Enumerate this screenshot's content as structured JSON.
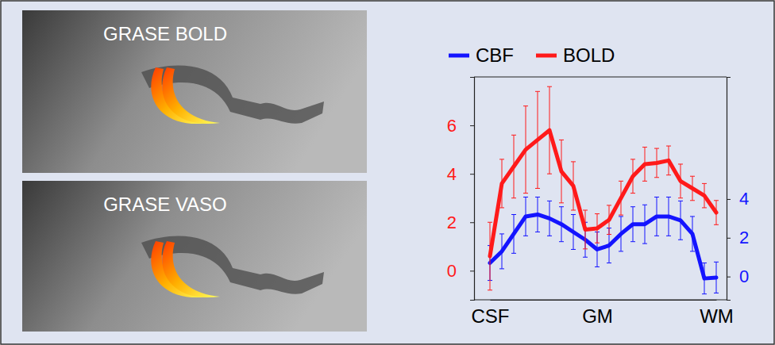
{
  "chart_data": {
    "type": "line",
    "categories": [
      "CSF",
      null,
      null,
      null,
      null,
      null,
      null,
      null,
      null,
      "GM",
      null,
      null,
      null,
      null,
      null,
      null,
      null,
      null,
      null,
      "WM"
    ],
    "series": [
      {
        "name": "CBF",
        "color": "#1414ff",
        "axis": "y2",
        "values": [
          0.7,
          1.3,
          2.2,
          3.1,
          3.2,
          3.0,
          2.7,
          2.3,
          1.9,
          1.4,
          1.6,
          2.2,
          2.7,
          2.7,
          3.1,
          3.1,
          2.9,
          2.2,
          -0.1,
          -0.05
        ],
        "errors": [
          0.9,
          0.9,
          1.0,
          1.0,
          0.9,
          0.9,
          0.9,
          0.9,
          0.9,
          0.9,
          0.9,
          0.9,
          0.9,
          1.0,
          1.0,
          1.0,
          1.0,
          0.9,
          0.8,
          0.8
        ]
      },
      {
        "name": "BOLD",
        "color": "#ff1a1a",
        "values": [
          0.6,
          3.6,
          4.3,
          5.0,
          5.4,
          5.8,
          4.1,
          3.5,
          1.7,
          1.75,
          2.1,
          3.0,
          3.9,
          4.4,
          4.45,
          4.55,
          3.7,
          3.4,
          3.1,
          2.4
        ],
        "errors": [
          1.4,
          1.0,
          1.3,
          1.8,
          2.0,
          1.8,
          1.3,
          1.0,
          0.8,
          0.6,
          0.6,
          0.7,
          0.7,
          0.7,
          0.6,
          0.6,
          0.7,
          0.5,
          0.5,
          0.5
        ]
      }
    ],
    "ylim": [
      -1.2,
      8
    ],
    "yticks": [
      0,
      2,
      4,
      6
    ],
    "y2lim": [
      -1.2,
      10.3
    ],
    "y2ticks": [
      0,
      2,
      4
    ],
    "legend": "top",
    "grid": false
  },
  "images": [
    {
      "label": "GRASE BOLD"
    },
    {
      "label": "GRASE VASO"
    }
  ]
}
